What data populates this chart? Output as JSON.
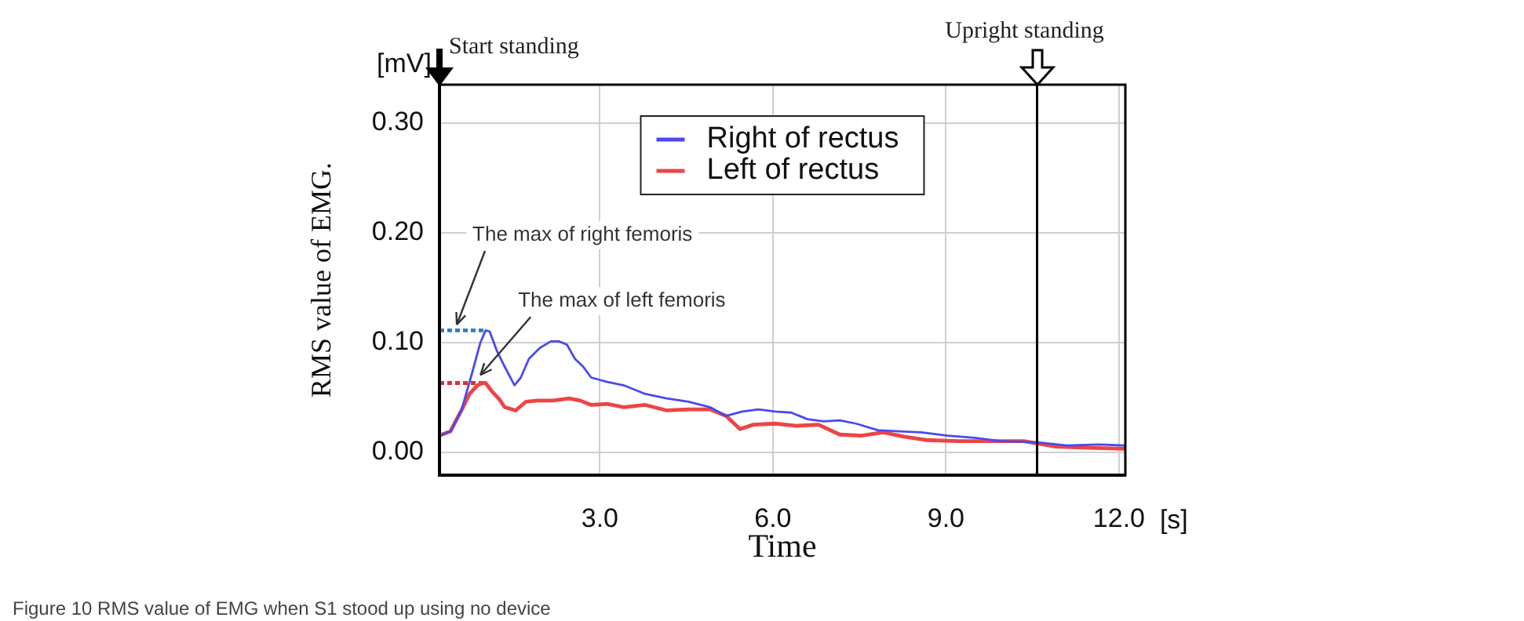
{
  "chart_data": {
    "type": "line",
    "xlabel": "Time",
    "ylabel": "RMS value of EMG.",
    "xlim": [
      0.22,
      12.11
    ],
    "ylim": [
      -0.021,
      0.335
    ],
    "xticks": [
      {
        "value": 3,
        "label": "3.0"
      },
      {
        "value": 6,
        "label": "6.0"
      },
      {
        "value": 9,
        "label": "9.0"
      },
      {
        "value": 12,
        "label": "12.0"
      }
    ],
    "yticks": [
      {
        "value": 0,
        "label": "0.00"
      },
      {
        "value": 0.1,
        "label": "0.10"
      },
      {
        "value": 0.2,
        "label": "0.20"
      },
      {
        "value": 0.3,
        "label": "0.30"
      }
    ],
    "grid": true,
    "legend": "top",
    "line_style": "solid",
    "marker": "none",
    "series": [
      {
        "name": "Right of rectus",
        "color": "#4a4aee",
        "x": [
          0.22,
          0.41,
          0.6,
          0.79,
          0.93,
          1.02,
          1.09,
          1.21,
          1.35,
          1.52,
          1.63,
          1.77,
          1.96,
          2.15,
          2.29,
          2.43,
          2.57,
          2.71,
          2.85,
          3.13,
          3.41,
          3.79,
          4.16,
          4.54,
          4.91,
          5.19,
          5.47,
          5.75,
          6.04,
          6.32,
          6.6,
          6.88,
          7.16,
          7.44,
          7.82,
          8.19,
          8.57,
          9.03,
          9.5,
          9.97,
          10.58,
          11.1,
          11.66,
          12.11
        ],
        "values": [
          0.015,
          0.019,
          0.038,
          0.073,
          0.1,
          0.111,
          0.11,
          0.093,
          0.078,
          0.061,
          0.068,
          0.085,
          0.095,
          0.101,
          0.101,
          0.098,
          0.085,
          0.078,
          0.068,
          0.064,
          0.061,
          0.053,
          0.049,
          0.046,
          0.041,
          0.033,
          0.037,
          0.039,
          0.037,
          0.036,
          0.03,
          0.028,
          0.029,
          0.026,
          0.02,
          0.019,
          0.018,
          0.015,
          0.013,
          0.01,
          0.009,
          0.006,
          0.007,
          0.006
        ]
      },
      {
        "name": "Left of rectus",
        "color": "#ee4444",
        "x": [
          0.22,
          0.41,
          0.6,
          0.74,
          0.88,
          0.97,
          1.02,
          1.12,
          1.26,
          1.35,
          1.54,
          1.72,
          1.91,
          2.19,
          2.47,
          2.66,
          2.85,
          3.13,
          3.41,
          3.79,
          4.16,
          4.54,
          4.91,
          5.19,
          5.43,
          5.66,
          6.04,
          6.41,
          6.79,
          7.16,
          7.54,
          7.91,
          8.29,
          8.66,
          9.22,
          9.78,
          10.35,
          10.91,
          11.47,
          12.11
        ],
        "values": [
          0.015,
          0.019,
          0.038,
          0.053,
          0.061,
          0.063,
          0.063,
          0.056,
          0.048,
          0.041,
          0.038,
          0.046,
          0.047,
          0.047,
          0.049,
          0.047,
          0.043,
          0.044,
          0.041,
          0.043,
          0.038,
          0.039,
          0.039,
          0.033,
          0.021,
          0.025,
          0.026,
          0.024,
          0.025,
          0.016,
          0.015,
          0.018,
          0.014,
          0.011,
          0.01,
          0.01,
          0.01,
          0.005,
          0.004,
          0.003
        ]
      },
      {
        "color": "#2a7fc0",
        "line_style": "dashed",
        "x": [
          0.22,
          1.02
        ],
        "values": [
          0.111,
          0.111
        ]
      },
      {
        "color": "#e03030",
        "line_style": "dashed",
        "x": [
          0.22,
          1.02
        ],
        "values": [
          0.063,
          0.063
        ]
      }
    ],
    "ref_lines": [
      {
        "axis": "x",
        "value": 0.22,
        "label": "Start standing",
        "color": "#000000"
      },
      {
        "axis": "x",
        "value": 10.58,
        "label": "Upright standing",
        "color": "#000000"
      }
    ],
    "annotations": [
      {
        "text": "The max of right femoris",
        "x": 0.52,
        "y": 0.112
      },
      {
        "text": "The max of left femoris",
        "x": 0.93,
        "y": 0.066
      },
      "[mV]",
      "[s]",
      "Figure 10 RMS value of EMG when S1 stood up using no device"
    ]
  }
}
